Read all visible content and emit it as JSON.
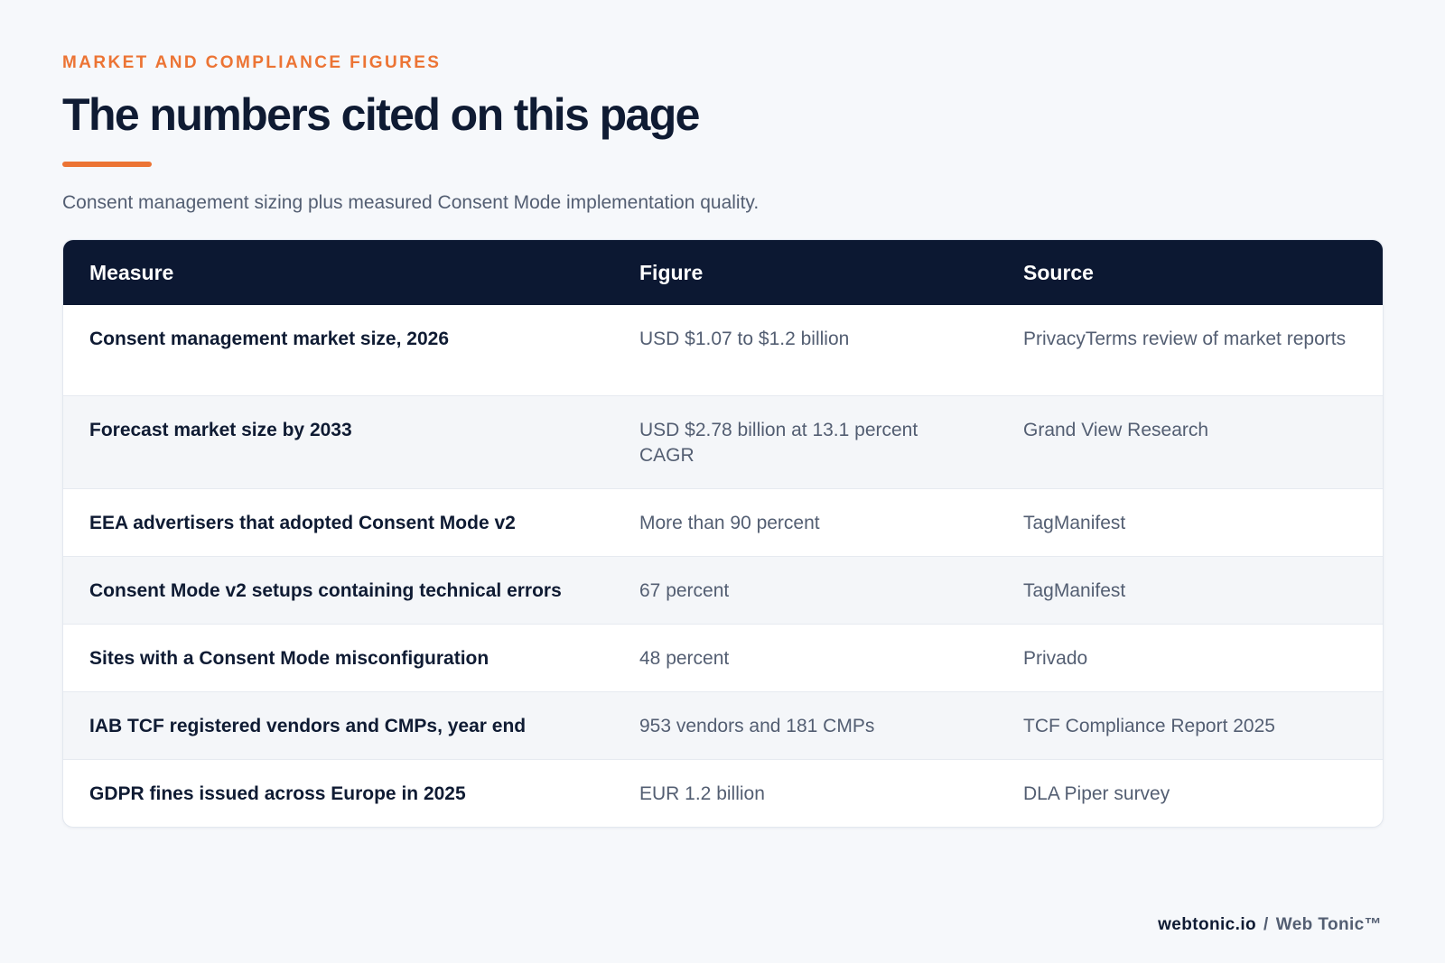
{
  "header": {
    "eyebrow": "MARKET AND COMPLIANCE FIGURES",
    "title": "The numbers cited on this page",
    "subtitle": "Consent management sizing plus measured Consent Mode implementation quality."
  },
  "table": {
    "columns": [
      "Measure",
      "Figure",
      "Source"
    ],
    "rows": [
      {
        "measure": "Consent management market size, 2026",
        "figure": "USD $1.07 to $1.2 billion",
        "source": "PrivacyTerms review of market reports"
      },
      {
        "measure": "Forecast market size by 2033",
        "figure": "USD $2.78 billion at 13.1 percent CAGR",
        "source": "Grand View Research"
      },
      {
        "measure": "EEA advertisers that adopted Consent Mode v2",
        "figure": "More than 90 percent",
        "source": "TagManifest"
      },
      {
        "measure": "Consent Mode v2 setups containing technical errors",
        "figure": "67 percent",
        "source": "TagManifest"
      },
      {
        "measure": "Sites with a Consent Mode misconfiguration",
        "figure": "48 percent",
        "source": "Privado"
      },
      {
        "measure": "IAB TCF registered vendors and CMPs, year end",
        "figure": "953 vendors and 181 CMPs",
        "source": "TCF Compliance Report 2025"
      },
      {
        "measure": "GDPR fines issued across Europe in 2025",
        "figure": "EUR 1.2 billion",
        "source": "DLA Piper survey"
      }
    ]
  },
  "footer": {
    "site": "webtonic.io",
    "separator": "/",
    "brand": "Web Tonic™"
  },
  "colors": {
    "accent": "#ec7434",
    "header_bg": "#0c1832",
    "page_bg": "#f6f8fb",
    "text_dark": "#0f1b33",
    "text_muted": "#535e72"
  }
}
